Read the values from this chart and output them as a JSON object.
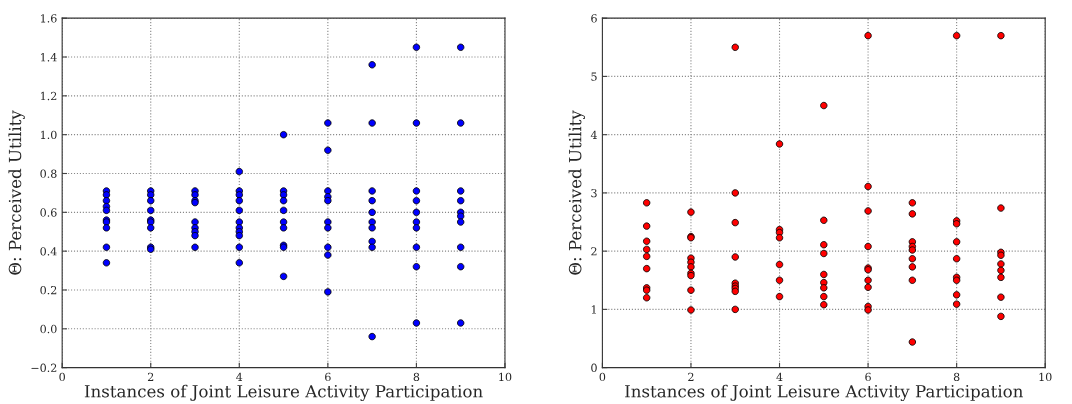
{
  "chart_data": [
    {
      "type": "scatter",
      "xlabel": "Instances of Joint Leisure Activity Participation",
      "ylabel": "Θ: Perceived Utility",
      "xlim": [
        0,
        10
      ],
      "ylim": [
        -0.2,
        1.6
      ],
      "xticks": [
        0,
        2,
        4,
        6,
        8,
        10
      ],
      "yticks": [
        {
          "value": -0.2,
          "label": "−0.2"
        },
        {
          "value": 0.0,
          "label": "0.0"
        },
        {
          "value": 0.2,
          "label": "0.2"
        },
        {
          "value": 0.4,
          "label": "0.4"
        },
        {
          "value": 0.6,
          "label": "0.6"
        },
        {
          "value": 0.8,
          "label": "0.8"
        },
        {
          "value": 1.0,
          "label": "1.0"
        },
        {
          "value": 1.2,
          "label": "1.2"
        },
        {
          "value": 1.4,
          "label": "1.4"
        },
        {
          "value": 1.6,
          "label": "1.6"
        }
      ],
      "grid": true,
      "marker": "circle",
      "series": [
        {
          "color": "#0000ff",
          "x": [
            1,
            1,
            1,
            1,
            1,
            1,
            1,
            1,
            1,
            1,
            2,
            2,
            2,
            2,
            2,
            2,
            2,
            2,
            2,
            3,
            3,
            3,
            3,
            3,
            3,
            3,
            3,
            3,
            4,
            4,
            4,
            4,
            4,
            4,
            4,
            4,
            4,
            4,
            4,
            5,
            5,
            5,
            5,
            5,
            5,
            5,
            5,
            5,
            5,
            6,
            6,
            6,
            6,
            6,
            6,
            6,
            6,
            6,
            6,
            7,
            7,
            7,
            7,
            7,
            7,
            7,
            7,
            7,
            7,
            8,
            8,
            8,
            8,
            8,
            8,
            8,
            8,
            8,
            8,
            9,
            9,
            9,
            9,
            9,
            9,
            9,
            9,
            9,
            9
          ],
          "values": [
            0.71,
            0.69,
            0.66,
            0.63,
            0.61,
            0.56,
            0.55,
            0.52,
            0.42,
            0.34,
            0.71,
            0.69,
            0.66,
            0.61,
            0.56,
            0.55,
            0.52,
            0.42,
            0.41,
            0.71,
            0.69,
            0.66,
            0.65,
            0.55,
            0.52,
            0.5,
            0.48,
            0.42,
            0.81,
            0.71,
            0.69,
            0.66,
            0.61,
            0.55,
            0.52,
            0.5,
            0.48,
            0.42,
            0.34,
            1.0,
            0.71,
            0.69,
            0.66,
            0.61,
            0.55,
            0.52,
            0.43,
            0.42,
            0.27,
            1.06,
            0.92,
            0.71,
            0.68,
            0.66,
            0.55,
            0.52,
            0.42,
            0.38,
            0.19,
            1.36,
            1.06,
            0.71,
            0.66,
            0.6,
            0.55,
            0.52,
            0.45,
            0.42,
            -0.04,
            1.45,
            1.06,
            0.71,
            0.66,
            0.6,
            0.55,
            0.52,
            0.42,
            0.32,
            0.03,
            1.45,
            1.06,
            0.71,
            0.66,
            0.6,
            0.58,
            0.55,
            0.42,
            0.32,
            0.03
          ]
        }
      ]
    },
    {
      "type": "scatter",
      "xlabel": "Instances of Joint Leisure Activity Participation",
      "ylabel": "Θ: Perceived Utility",
      "xlim": [
        0,
        10
      ],
      "ylim": [
        0,
        6
      ],
      "xticks": [
        0,
        2,
        4,
        6,
        8,
        10
      ],
      "yticks": [
        0,
        1,
        2,
        3,
        4,
        5,
        6
      ],
      "grid": true,
      "marker": "circle",
      "series": [
        {
          "color": "#ff0000",
          "x": [
            1,
            1,
            1,
            1,
            1,
            1,
            1,
            1,
            1,
            2,
            2,
            2,
            2,
            2,
            2,
            2,
            2,
            2,
            2,
            3,
            3,
            3,
            3,
            3,
            3,
            3,
            3,
            3,
            4,
            4,
            4,
            4,
            4,
            4,
            4,
            5,
            5,
            5,
            5,
            5,
            5,
            5,
            5,
            5,
            6,
            6,
            6,
            6,
            6,
            6,
            6,
            6,
            6,
            6,
            7,
            7,
            7,
            7,
            7,
            7,
            7,
            7,
            7,
            8,
            8,
            8,
            8,
            8,
            8,
            8,
            8,
            8,
            9,
            9,
            9,
            9,
            9,
            9,
            9,
            9,
            9
          ],
          "values": [
            2.83,
            2.43,
            2.17,
            2.03,
            1.91,
            1.7,
            1.37,
            1.33,
            1.2,
            2.67,
            2.25,
            2.23,
            1.88,
            1.81,
            1.73,
            1.62,
            1.58,
            1.33,
            0.99,
            5.5,
            3.0,
            2.49,
            1.9,
            1.45,
            1.4,
            1.36,
            1.31,
            1.0,
            3.84,
            2.37,
            2.32,
            2.23,
            1.77,
            1.5,
            1.22,
            4.5,
            2.53,
            2.11,
            1.96,
            1.6,
            1.46,
            1.37,
            1.22,
            1.08,
            5.7,
            3.11,
            2.69,
            2.08,
            1.71,
            1.68,
            1.5,
            1.38,
            1.05,
            0.99,
            2.83,
            2.64,
            2.16,
            2.08,
            2.02,
            1.87,
            1.73,
            1.5,
            0.44,
            5.7,
            2.52,
            2.47,
            2.16,
            1.87,
            1.55,
            1.5,
            1.25,
            1.09,
            5.7,
            2.74,
            1.98,
            1.93,
            1.78,
            1.67,
            1.55,
            1.21,
            0.88
          ]
        }
      ]
    }
  ]
}
